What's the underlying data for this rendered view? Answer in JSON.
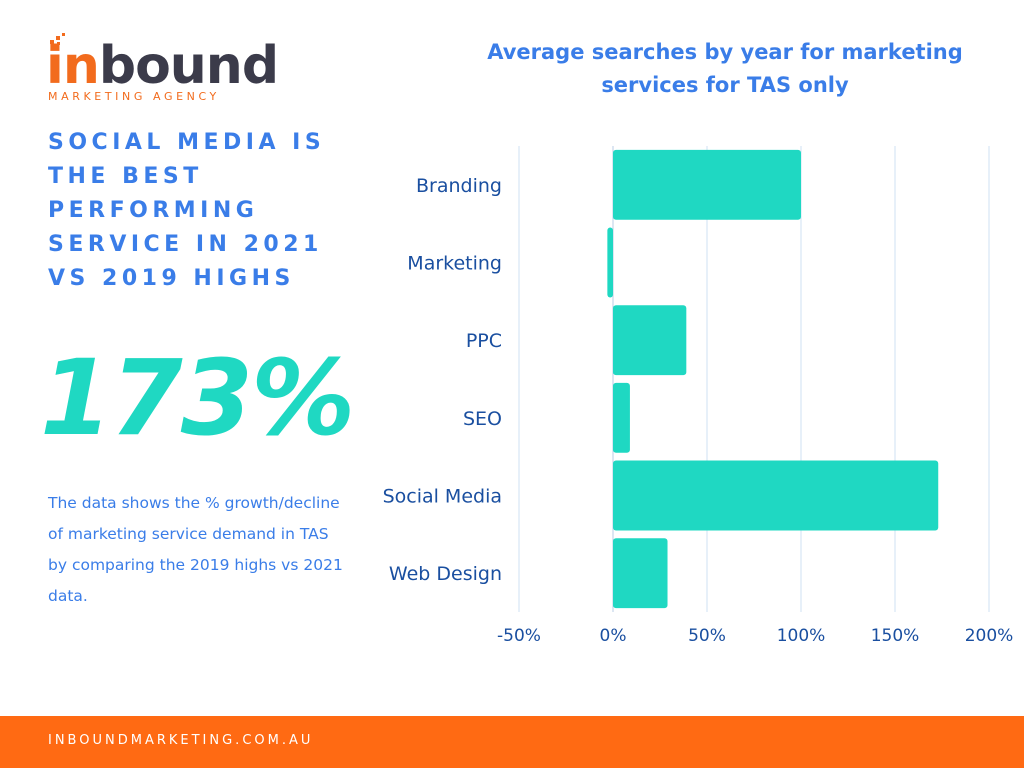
{
  "brand": {
    "logo_word_i": "in",
    "logo_word_rest": "bound",
    "logo_tagline": "MARKETING AGENCY",
    "logo_icon": "orange-dot-cluster-icon",
    "colors": {
      "orange": "#f26b1d",
      "dark": "#3b3b4a",
      "blue": "#3a7de8",
      "teal": "#1fd8c2",
      "footer": "#ff6a13"
    }
  },
  "headline": "SOCIAL MEDIA IS THE BEST PERFORMING SERVICE IN 2021 VS 2019 HIGHS",
  "big_stat": "173%",
  "note": "The data shows the % growth/decline of marketing service demand in TAS by comparing the 2019 highs vs 2021 data.",
  "footer": {
    "text": "INBOUNDMARKETING.COM.AU"
  },
  "chart_data": {
    "type": "bar",
    "orientation": "horizontal",
    "title": "Average searches by year for marketing services for TAS only",
    "categories": [
      "Branding",
      "Marketing",
      "PPC",
      "SEO",
      "Social Media",
      "Web Design"
    ],
    "values": [
      100,
      -3,
      39,
      9,
      173,
      29
    ],
    "xlim": [
      -50,
      200
    ],
    "xticks": [
      -50,
      0,
      50,
      100,
      150,
      200
    ],
    "xtick_labels": [
      "-50%",
      "0%",
      "50%",
      "100%",
      "150%",
      "200%"
    ],
    "grid": "vertical",
    "legend": "none",
    "bar_color": "#1fd8c2",
    "category_label_color": "#1a4fa0",
    "tick_label_color": "#1a4fa0",
    "grid_color": "#cfe0f3"
  }
}
